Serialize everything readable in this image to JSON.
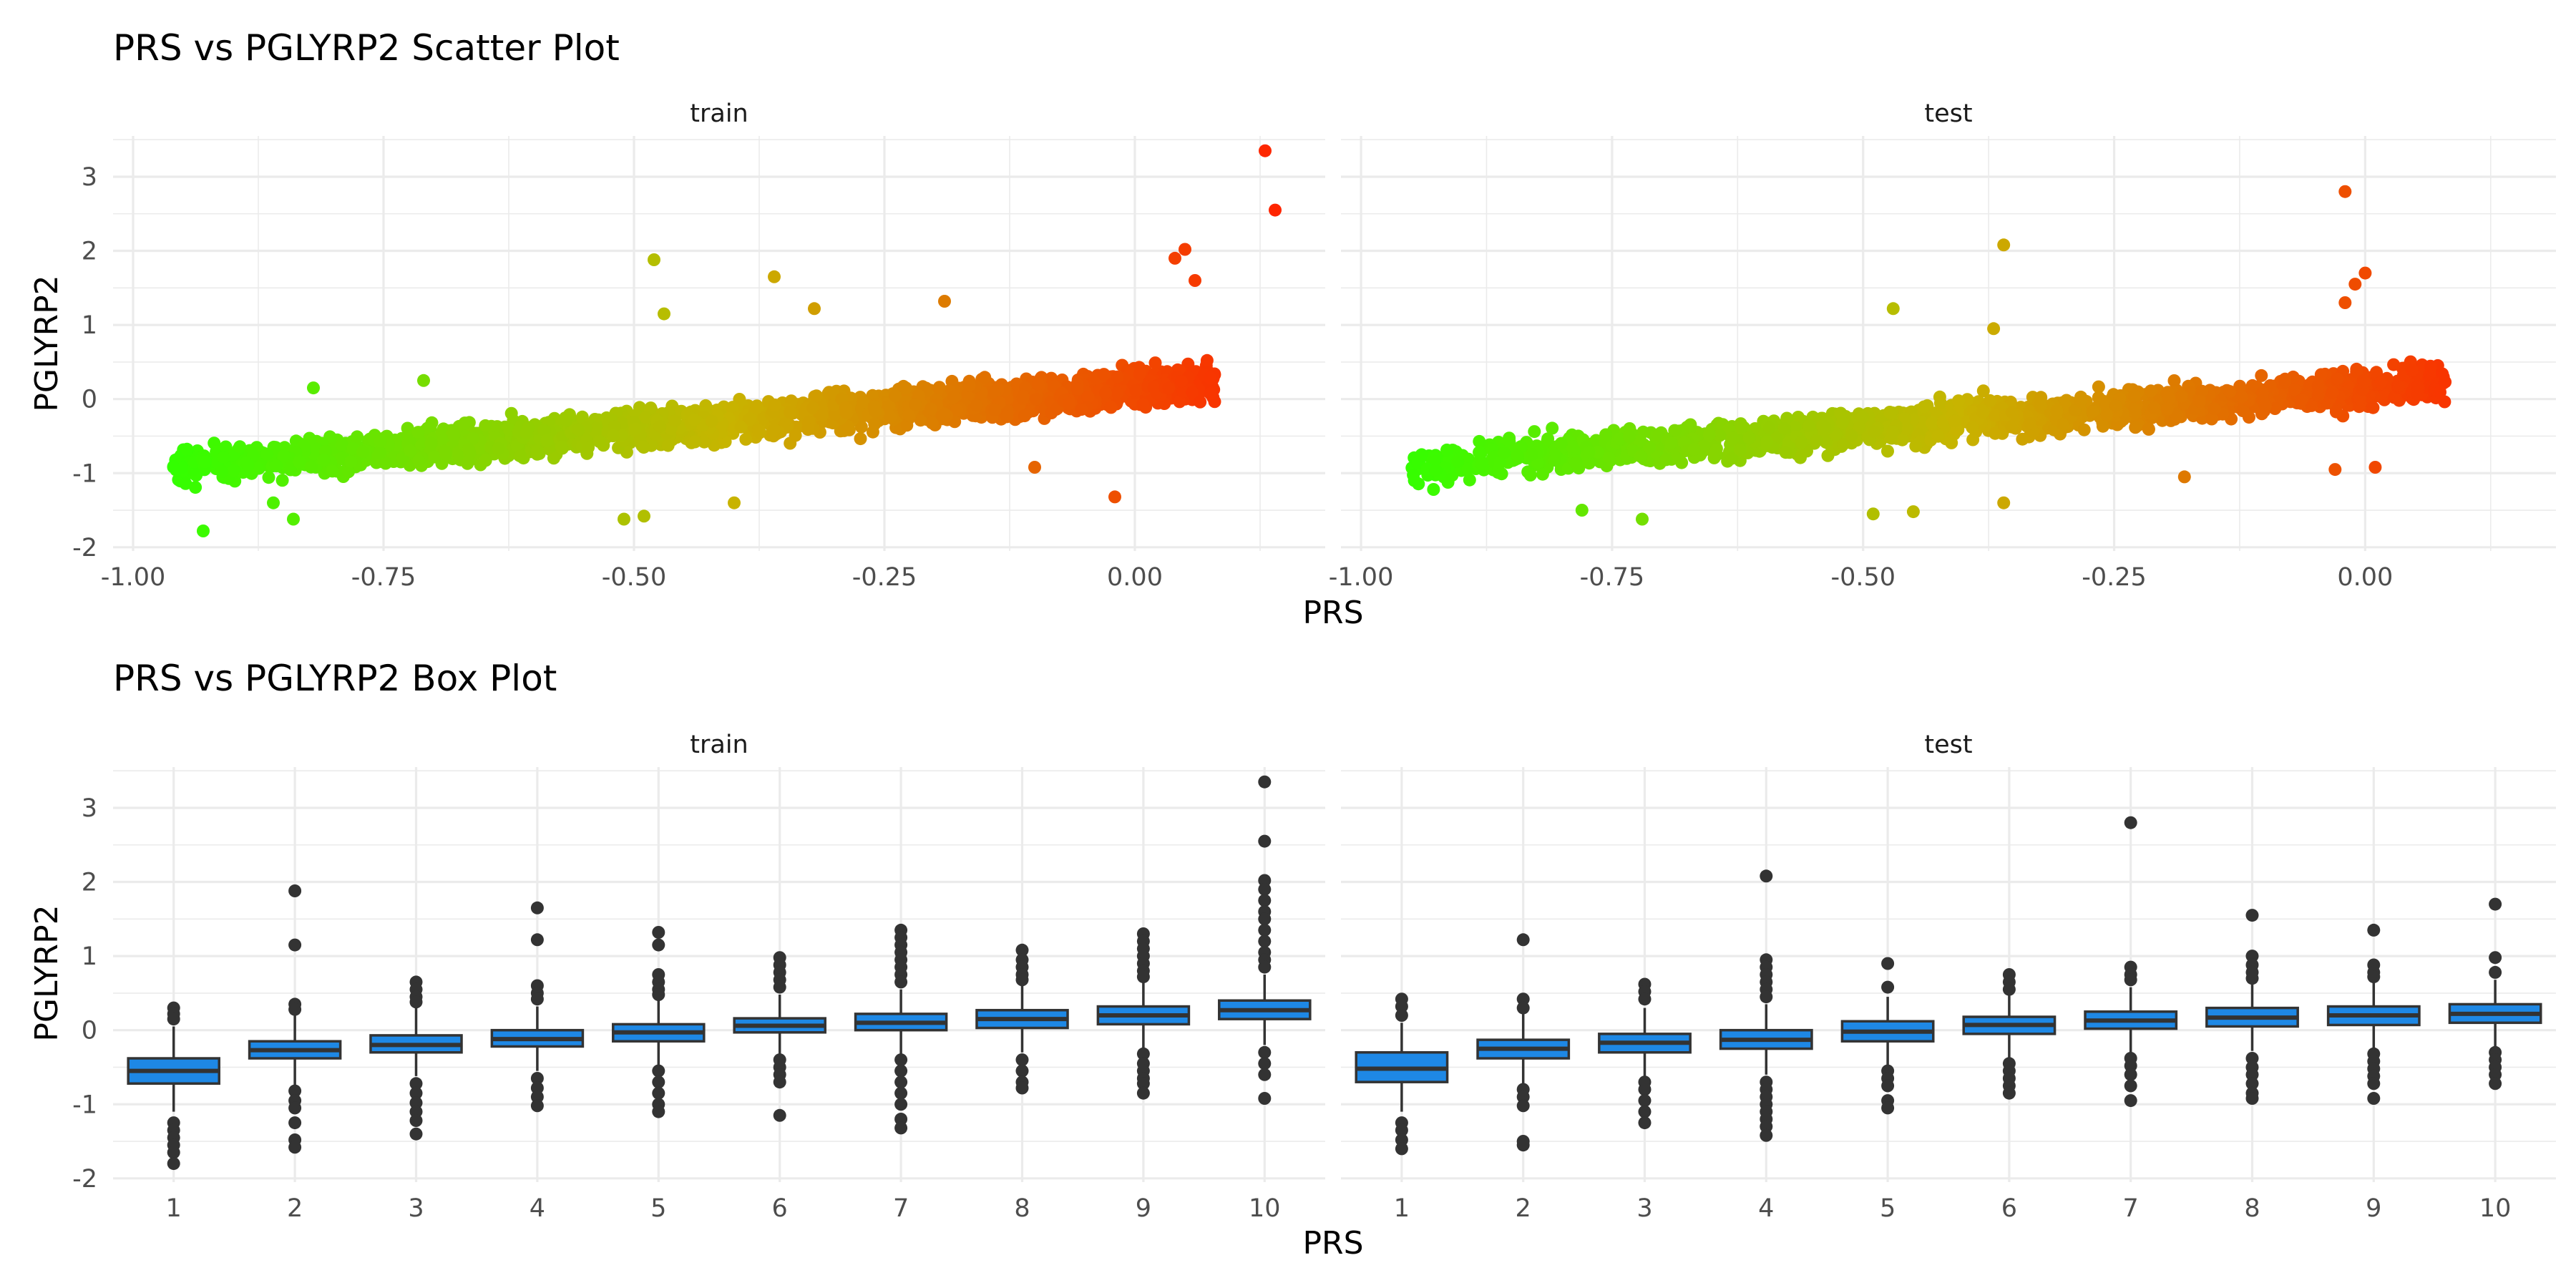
{
  "chart_data": [
    {
      "type": "scatter",
      "title": "PRS vs PGLYRP2 Scatter Plot",
      "xlabel": "PRS",
      "ylabel": "PGLYRP2",
      "facets": [
        "train",
        "test"
      ],
      "xlim": [
        -1.02,
        0.19
      ],
      "ylim": [
        -2.05,
        3.55
      ],
      "x_ticks": [
        -1.0,
        -0.75,
        -0.5,
        -0.25,
        0.0
      ],
      "x_tick_labels": [
        "-1.00",
        "-0.75",
        "-0.50",
        "-0.25",
        "0.00"
      ],
      "y_ticks": [
        -2,
        -1,
        0,
        1,
        2,
        3
      ],
      "y_tick_labels": [
        "-2",
        "-1",
        "0",
        "1",
        "2",
        "3"
      ],
      "color_scale": {
        "low": "#33ff00",
        "mid": "#c8b400",
        "high": "#ff2200",
        "mapped_to": "PRS"
      },
      "grid": true,
      "trend": {
        "slope": 1.1,
        "intercept": 0.15
      },
      "panels": {
        "train": {
          "x_range": [
            -0.96,
            0.08
          ],
          "outliers": [
            {
              "x": 0.13,
              "y": 3.35
            },
            {
              "x": 0.14,
              "y": 2.55
            },
            {
              "x": -0.48,
              "y": 1.88
            },
            {
              "x": -0.47,
              "y": 1.15
            },
            {
              "x": -0.36,
              "y": 1.65
            },
            {
              "x": -0.32,
              "y": 1.22
            },
            {
              "x": 0.05,
              "y": 2.02
            },
            {
              "x": 0.04,
              "y": 1.9
            },
            {
              "x": 0.06,
              "y": 1.6
            },
            {
              "x": -0.19,
              "y": 1.32
            },
            {
              "x": -0.93,
              "y": -1.78
            },
            {
              "x": -0.84,
              "y": -1.62
            },
            {
              "x": -0.51,
              "y": -1.62
            },
            {
              "x": -0.49,
              "y": -1.58
            },
            {
              "x": -0.82,
              "y": 0.15
            },
            {
              "x": -0.71,
              "y": 0.25
            },
            {
              "x": -0.02,
              "y": -1.32
            },
            {
              "x": -0.1,
              "y": -0.92
            },
            {
              "x": -0.86,
              "y": -1.4
            },
            {
              "x": -0.4,
              "y": -1.4
            }
          ]
        },
        "test": {
          "x_range": [
            -0.95,
            0.08
          ],
          "outliers": [
            {
              "x": -0.02,
              "y": 2.8
            },
            {
              "x": -0.36,
              "y": 2.08
            },
            {
              "x": 0.0,
              "y": 1.7
            },
            {
              "x": -0.01,
              "y": 1.55
            },
            {
              "x": -0.47,
              "y": 1.22
            },
            {
              "x": -0.02,
              "y": 1.3
            },
            {
              "x": -0.37,
              "y": 0.95
            },
            {
              "x": -0.72,
              "y": -1.62
            },
            {
              "x": -0.49,
              "y": -1.55
            },
            {
              "x": -0.45,
              "y": -1.52
            },
            {
              "x": -0.36,
              "y": -1.4
            },
            {
              "x": -0.78,
              "y": -1.5
            },
            {
              "x": -0.18,
              "y": -1.05
            },
            {
              "x": -0.03,
              "y": -0.95
            },
            {
              "x": 0.01,
              "y": -0.92
            }
          ]
        }
      }
    },
    {
      "type": "box",
      "title": "PRS vs PGLYRP2 Box Plot",
      "xlabel": "PRS",
      "ylabel": "PGLYRP2",
      "facets": [
        "train",
        "test"
      ],
      "categories": [
        "1",
        "2",
        "3",
        "4",
        "5",
        "6",
        "7",
        "8",
        "9",
        "10"
      ],
      "ylim": [
        -2.05,
        3.55
      ],
      "y_ticks": [
        -2,
        -1,
        0,
        1,
        2,
        3
      ],
      "y_tick_labels": [
        "-2",
        "-1",
        "0",
        "1",
        "2",
        "3"
      ],
      "box_color": "#1e88e5",
      "grid": true,
      "panels": {
        "train": {
          "boxes": [
            {
              "q1": -0.72,
              "median": -0.55,
              "q3": -0.38,
              "lo": -1.1,
              "hi": 0.05,
              "outliers": [
                0.3,
                0.22,
                0.15,
                -1.25,
                -1.35,
                -1.45,
                -1.55,
                -1.65,
                -1.8
              ]
            },
            {
              "q1": -0.38,
              "median": -0.27,
              "q3": -0.15,
              "lo": -0.75,
              "hi": 0.22,
              "outliers": [
                1.88,
                1.15,
                0.35,
                0.28,
                -0.82,
                -0.95,
                -1.05,
                -1.25,
                -1.48,
                -1.58
              ]
            },
            {
              "q1": -0.3,
              "median": -0.2,
              "q3": -0.07,
              "lo": -0.62,
              "hi": 0.3,
              "outliers": [
                0.65,
                0.55,
                0.45,
                0.38,
                -0.72,
                -0.85,
                -0.98,
                -1.1,
                -1.22,
                -1.4
              ]
            },
            {
              "q1": -0.22,
              "median": -0.12,
              "q3": 0.0,
              "lo": -0.55,
              "hi": 0.32,
              "outliers": [
                1.65,
                1.22,
                0.6,
                0.5,
                0.42,
                -0.65,
                -0.78,
                -0.9,
                -1.02
              ]
            },
            {
              "q1": -0.15,
              "median": -0.03,
              "q3": 0.08,
              "lo": -0.48,
              "hi": 0.4,
              "outliers": [
                1.32,
                1.15,
                0.75,
                0.65,
                0.55,
                0.48,
                -0.55,
                -0.7,
                -0.85,
                -1.0,
                -1.1
              ]
            },
            {
              "q1": -0.03,
              "median": 0.06,
              "q3": 0.16,
              "lo": -0.32,
              "hi": 0.48,
              "outliers": [
                0.98,
                0.88,
                0.78,
                0.68,
                0.58,
                -0.4,
                -0.5,
                -0.6,
                -0.7,
                -1.15
              ]
            },
            {
              "q1": 0.0,
              "median": 0.1,
              "q3": 0.22,
              "lo": -0.32,
              "hi": 0.55,
              "outliers": [
                1.35,
                1.25,
                1.15,
                1.05,
                0.95,
                0.85,
                0.75,
                0.65,
                -0.4,
                -0.55,
                -0.7,
                -0.85,
                -1.0,
                -1.2,
                -1.32
              ]
            },
            {
              "q1": 0.03,
              "median": 0.15,
              "q3": 0.27,
              "lo": -0.3,
              "hi": 0.6,
              "outliers": [
                1.08,
                0.95,
                0.85,
                0.75,
                0.68,
                -0.4,
                -0.55,
                -0.7,
                -0.78
              ]
            },
            {
              "q1": 0.08,
              "median": 0.2,
              "q3": 0.32,
              "lo": -0.25,
              "hi": 0.65,
              "outliers": [
                1.3,
                1.2,
                1.1,
                1.0,
                0.9,
                0.8,
                0.72,
                -0.32,
                -0.45,
                -0.55,
                -0.65,
                -0.72,
                -0.85
              ]
            },
            {
              "q1": 0.15,
              "median": 0.27,
              "q3": 0.4,
              "lo": -0.2,
              "hi": 0.75,
              "outliers": [
                3.35,
                2.55,
                2.02,
                1.9,
                1.75,
                1.6,
                1.5,
                1.35,
                1.2,
                1.05,
                0.95,
                0.85,
                -0.3,
                -0.45,
                -0.6,
                -0.92
              ]
            }
          ]
        },
        "test": {
          "boxes": [
            {
              "q1": -0.7,
              "median": -0.52,
              "q3": -0.3,
              "lo": -1.1,
              "hi": 0.1,
              "outliers": [
                0.42,
                0.32,
                0.2,
                -1.25,
                -1.35,
                -1.48,
                -1.6
              ]
            },
            {
              "q1": -0.38,
              "median": -0.25,
              "q3": -0.13,
              "lo": -0.72,
              "hi": 0.22,
              "outliers": [
                1.22,
                0.42,
                0.3,
                -0.8,
                -0.9,
                -1.02,
                -1.5,
                -1.55
              ]
            },
            {
              "q1": -0.3,
              "median": -0.17,
              "q3": -0.05,
              "lo": -0.62,
              "hi": 0.3,
              "outliers": [
                0.62,
                0.52,
                0.42,
                -0.7,
                -0.8,
                -0.95,
                -1.1,
                -1.25
              ]
            },
            {
              "q1": -0.25,
              "median": -0.13,
              "q3": 0.0,
              "lo": -0.6,
              "hi": 0.35,
              "outliers": [
                2.08,
                0.95,
                0.85,
                0.75,
                0.65,
                0.55,
                0.45,
                -0.7,
                -0.8,
                -0.9,
                -1.0,
                -1.1,
                -1.2,
                -1.3,
                -1.42
              ]
            },
            {
              "q1": -0.15,
              "median": -0.02,
              "q3": 0.12,
              "lo": -0.5,
              "hi": 0.45,
              "outliers": [
                0.9,
                0.58,
                -0.55,
                -0.65,
                -0.75,
                -0.95,
                -1.05
              ]
            },
            {
              "q1": -0.05,
              "median": 0.07,
              "q3": 0.18,
              "lo": -0.38,
              "hi": 0.5,
              "outliers": [
                0.75,
                0.65,
                0.55,
                -0.45,
                -0.55,
                -0.65,
                -0.75,
                -0.85
              ]
            },
            {
              "q1": 0.02,
              "median": 0.13,
              "q3": 0.25,
              "lo": -0.3,
              "hi": 0.58,
              "outliers": [
                2.8,
                0.85,
                0.75,
                0.68,
                -0.38,
                -0.48,
                -0.6,
                -0.75,
                -0.95
              ]
            },
            {
              "q1": 0.05,
              "median": 0.17,
              "q3": 0.3,
              "lo": -0.28,
              "hi": 0.62,
              "outliers": [
                1.55,
                1.0,
                0.88,
                0.78,
                0.7,
                -0.38,
                -0.5,
                -0.6,
                -0.72,
                -0.85,
                -0.92
              ]
            },
            {
              "q1": 0.07,
              "median": 0.2,
              "q3": 0.32,
              "lo": -0.25,
              "hi": 0.65,
              "outliers": [
                1.35,
                0.88,
                0.78,
                0.72,
                -0.32,
                -0.42,
                -0.52,
                -0.62,
                -0.72,
                -0.92
              ]
            },
            {
              "q1": 0.1,
              "median": 0.22,
              "q3": 0.35,
              "lo": -0.22,
              "hi": 0.68,
              "outliers": [
                1.7,
                0.98,
                0.78,
                -0.3,
                -0.4,
                -0.5,
                -0.6,
                -0.72
              ]
            }
          ]
        }
      }
    }
  ]
}
